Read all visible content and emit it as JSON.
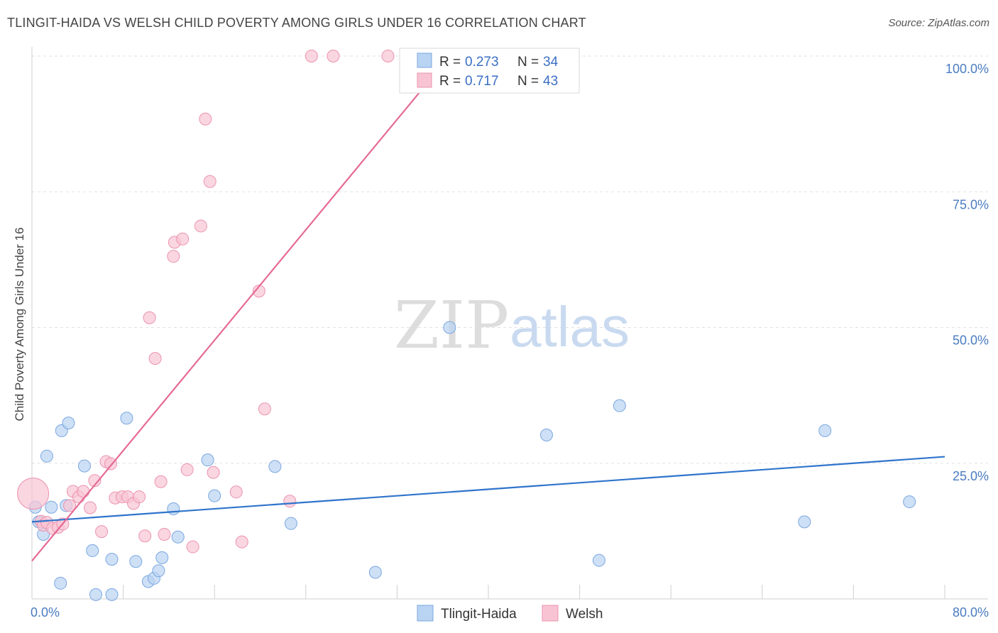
{
  "header": {
    "title": "TLINGIT-HAIDA VS WELSH CHILD POVERTY AMONG GIRLS UNDER 16 CORRELATION CHART",
    "source": "Source: ZipAtlas.com"
  },
  "watermark": {
    "part1": "ZIP",
    "part2": "atlas"
  },
  "colors": {
    "tlingit_fill": "#b9d3f2",
    "tlingit_stroke": "#7aa7e0",
    "tlingit_line": "#2f74cc",
    "welsh_fill": "#f8c4d4",
    "welsh_stroke": "#ec93b0",
    "welsh_line": "#e56a94"
  },
  "legend": {
    "rows": [
      {
        "r_label": "R =",
        "r_value": "0.273",
        "n_label": "N =",
        "n_value": "34"
      },
      {
        "r_label": "R =",
        "r_value": "0.717",
        "n_label": "N =",
        "n_value": "43"
      }
    ]
  },
  "chart_data": {
    "type": "scatter",
    "title": "TLINGIT-HAIDA VS WELSH CHILD POVERTY AMONG GIRLS UNDER 16 CORRELATION CHART",
    "xlabel": "",
    "ylabel": "Child Poverty Among Girls Under 16",
    "xlim": [
      0,
      80
    ],
    "ylim": [
      0,
      100
    ],
    "x_tick_labels": [
      "0.0%",
      "80.0%"
    ],
    "y_ticks": [
      25,
      50,
      75,
      100
    ],
    "y_tick_labels": [
      "25.0%",
      "50.0%",
      "75.0%",
      "100.0%"
    ],
    "grid": true,
    "legend_position": "top-center",
    "series": [
      {
        "name": "Tlingit-Haida",
        "r": 0.273,
        "n": 34,
        "trend": {
          "x": [
            0,
            80
          ],
          "y": [
            14.2,
            26.2
          ]
        },
        "points": [
          {
            "x": 0.3,
            "y": 16.9
          },
          {
            "x": 0.6,
            "y": 14.2
          },
          {
            "x": 1.0,
            "y": 11.9
          },
          {
            "x": 1.3,
            "y": 26.3
          },
          {
            "x": 1.7,
            "y": 16.9
          },
          {
            "x": 2.5,
            "y": 2.9
          },
          {
            "x": 2.6,
            "y": 31.0
          },
          {
            "x": 3.0,
            "y": 17.2
          },
          {
            "x": 3.2,
            "y": 32.4
          },
          {
            "x": 4.6,
            "y": 24.5
          },
          {
            "x": 5.3,
            "y": 8.9
          },
          {
            "x": 5.6,
            "y": 0.8
          },
          {
            "x": 7.0,
            "y": 0.8
          },
          {
            "x": 7.0,
            "y": 7.3
          },
          {
            "x": 8.3,
            "y": 33.3
          },
          {
            "x": 9.1,
            "y": 6.9
          },
          {
            "x": 10.2,
            "y": 3.2
          },
          {
            "x": 10.7,
            "y": 3.8
          },
          {
            "x": 11.1,
            "y": 5.2
          },
          {
            "x": 11.4,
            "y": 7.6
          },
          {
            "x": 12.4,
            "y": 16.6
          },
          {
            "x": 12.8,
            "y": 11.4
          },
          {
            "x": 15.4,
            "y": 25.6
          },
          {
            "x": 16.0,
            "y": 19.0
          },
          {
            "x": 21.3,
            "y": 24.4
          },
          {
            "x": 22.7,
            "y": 13.9
          },
          {
            "x": 30.1,
            "y": 4.9
          },
          {
            "x": 36.6,
            "y": 50.0
          },
          {
            "x": 45.1,
            "y": 30.2
          },
          {
            "x": 49.7,
            "y": 7.1
          },
          {
            "x": 51.5,
            "y": 35.6
          },
          {
            "x": 67.7,
            "y": 14.2
          },
          {
            "x": 69.5,
            "y": 31.0
          },
          {
            "x": 76.9,
            "y": 17.9
          }
        ]
      },
      {
        "name": "Welsh",
        "r": 0.717,
        "n": 43,
        "trend": {
          "x": [
            0,
            36.6
          ],
          "y": [
            7.0,
            100.0
          ]
        },
        "points": [
          {
            "x": 0.1,
            "y": 19.4,
            "big": true
          },
          {
            "x": 0.8,
            "y": 14.3
          },
          {
            "x": 1.0,
            "y": 13.6
          },
          {
            "x": 1.3,
            "y": 14.1
          },
          {
            "x": 1.8,
            "y": 13.0
          },
          {
            "x": 2.3,
            "y": 13.2
          },
          {
            "x": 2.7,
            "y": 13.8
          },
          {
            "x": 3.3,
            "y": 17.2
          },
          {
            "x": 3.6,
            "y": 19.8
          },
          {
            "x": 4.1,
            "y": 18.8
          },
          {
            "x": 4.5,
            "y": 19.8
          },
          {
            "x": 5.1,
            "y": 16.8
          },
          {
            "x": 5.5,
            "y": 21.8
          },
          {
            "x": 6.1,
            "y": 12.4
          },
          {
            "x": 6.5,
            "y": 25.3
          },
          {
            "x": 6.9,
            "y": 24.9
          },
          {
            "x": 7.3,
            "y": 18.6
          },
          {
            "x": 7.9,
            "y": 18.8
          },
          {
            "x": 8.4,
            "y": 18.8
          },
          {
            "x": 8.9,
            "y": 17.6
          },
          {
            "x": 9.4,
            "y": 18.8
          },
          {
            "x": 9.9,
            "y": 11.6
          },
          {
            "x": 10.3,
            "y": 51.8
          },
          {
            "x": 10.8,
            "y": 44.3
          },
          {
            "x": 11.3,
            "y": 21.6
          },
          {
            "x": 11.6,
            "y": 11.9
          },
          {
            "x": 12.4,
            "y": 63.1
          },
          {
            "x": 12.5,
            "y": 65.7
          },
          {
            "x": 13.2,
            "y": 66.3
          },
          {
            "x": 13.6,
            "y": 23.8
          },
          {
            "x": 14.1,
            "y": 9.6
          },
          {
            "x": 14.8,
            "y": 68.7
          },
          {
            "x": 15.2,
            "y": 88.4
          },
          {
            "x": 15.6,
            "y": 76.9
          },
          {
            "x": 15.9,
            "y": 23.3
          },
          {
            "x": 17.9,
            "y": 19.7
          },
          {
            "x": 18.4,
            "y": 10.5
          },
          {
            "x": 19.9,
            "y": 56.7
          },
          {
            "x": 20.4,
            "y": 35.0
          },
          {
            "x": 22.6,
            "y": 18.0
          },
          {
            "x": 24.5,
            "y": 100.0
          },
          {
            "x": 26.4,
            "y": 100.0
          },
          {
            "x": 31.2,
            "y": 100.0
          }
        ]
      }
    ]
  },
  "bottom_legend": [
    {
      "label": "Tlingit-Haida"
    },
    {
      "label": "Welsh"
    }
  ]
}
